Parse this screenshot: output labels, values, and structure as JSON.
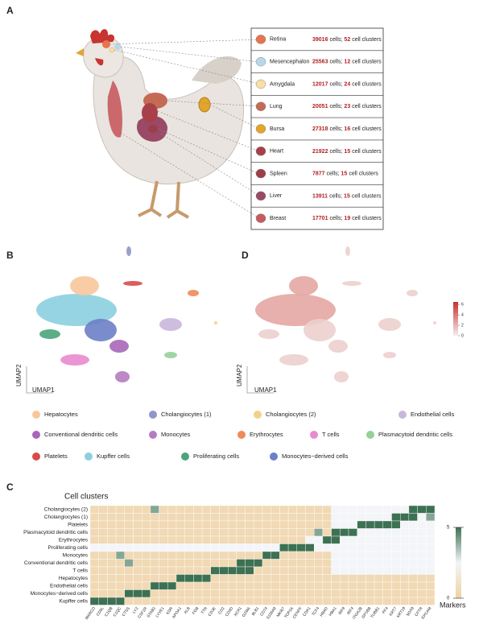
{
  "panel_labels": [
    "A",
    "B",
    "D",
    "C"
  ],
  "tissues": {
    "cells_label": "cells;",
    "clusters_label": "cell clusters",
    "items": [
      {
        "name": "Retina",
        "cells": 39016,
        "clusters": 52,
        "color": "#e8734f"
      },
      {
        "name": "Mesencephalon",
        "cells": 25563,
        "clusters": 12,
        "color": "#b8d8e8"
      },
      {
        "name": "Amygdala",
        "cells": 12017,
        "clusters": 24,
        "color": "#f8dfa8"
      },
      {
        "name": "Lung",
        "cells": 20051,
        "clusters": 23,
        "color": "#c56a55"
      },
      {
        "name": "Bursa",
        "cells": 27318,
        "clusters": 16,
        "color": "#e3a52a"
      },
      {
        "name": "Heart",
        "cells": 21922,
        "clusters": 15,
        "color": "#a8404a"
      },
      {
        "name": "Spleen",
        "cells": 7877,
        "clusters": 15,
        "color": "#9e3d48"
      },
      {
        "name": "Liver",
        "cells": 13911,
        "clusters": 15,
        "color": "#9a4a66"
      },
      {
        "name": "Breast",
        "cells": 17701,
        "clusters": 19,
        "color": "#c85a5f"
      }
    ]
  },
  "umap": {
    "x_label": "UMAP1",
    "y_label": "UMAP2",
    "colorbar": {
      "zlim": [
        0,
        6.5
      ],
      "ticks": [
        0,
        2,
        4,
        6
      ]
    },
    "clusters": [
      {
        "name": "Hepatocytes",
        "color": "#f7c89b"
      },
      {
        "name": "Cholangiocytes (1)",
        "color": "#8f96c9"
      },
      {
        "name": "Cholangiocytes (2)",
        "color": "#f2d28a"
      },
      {
        "name": "Endothelial cells",
        "color": "#c9b6dc"
      },
      {
        "name": "Conventional dendritic cells",
        "color": "#a768b8"
      },
      {
        "name": "Monocytes",
        "color": "#b57bc0"
      },
      {
        "name": "Erythrocytes",
        "color": "#f08a5a"
      },
      {
        "name": "T cells",
        "color": "#e98bcf"
      },
      {
        "name": "Plasmacytoid dendritic cells",
        "color": "#95d099"
      },
      {
        "name": "Platelets",
        "color": "#d94b48"
      },
      {
        "name": "Kupffer cells",
        "color": "#8ccfe0"
      },
      {
        "name": "Proliferating cells",
        "color": "#4aa57c"
      },
      {
        "name": "Monocytes−derived cells",
        "color": "#6c7fc7"
      }
    ]
  },
  "heatmap": {
    "type": "heatmap",
    "title": "Cell clusters",
    "x_label": "Markers",
    "zlim": [
      0,
      5
    ],
    "ticks": [
      0,
      5
    ],
    "rows": [
      "Cholangiocytes (2)",
      "Cholangiocytes (1)",
      "Platelets",
      "Plasmacytoid dendritic cells",
      "Erythrocytes",
      "Proliferating cells",
      "Monocytes",
      "Conventional dendritic cells",
      "T cells",
      "Hepatocytes",
      "Endothelial cells",
      "Monocytes−derived cells",
      "Kupffer cells"
    ],
    "columns": [
      "MARCO",
      "CD5L",
      "C1QB",
      "C1QC",
      "CTSS",
      "LYZ",
      "CSF1R",
      "STAB2",
      "LYVE1",
      "KDR",
      "APOA1",
      "ALB",
      "FGB",
      "TTR",
      "CD3E",
      "CD2",
      "CD3D",
      "XCR1",
      "GZMA",
      "BLB1",
      "CD74",
      "S100A8",
      "MKI67",
      "TOP2A",
      "CENPF",
      "CDK1",
      "TCF4",
      "HBAD",
      "HBA1",
      "IRF8",
      "IRF4",
      "ITGA2B",
      "GP1BB",
      "TUBB1",
      "PF4",
      "KRT7",
      "KRT19",
      "SOX9",
      "CFTR",
      "EPCAM"
    ],
    "values": [
      [
        0.5,
        0.5,
        0.5,
        0.5,
        0.5,
        0.5,
        0.5,
        4,
        0.5,
        0.5,
        0.5,
        0.5,
        0.5,
        0.5,
        0.5,
        0.5,
        0.5,
        0.5,
        0.5,
        0.5,
        0.5,
        0.5,
        0.5,
        0.5,
        0.5,
        0.5,
        0.5,
        0.5,
        2.5,
        2.5,
        2.5,
        2.5,
        2.5,
        2.5,
        2.5,
        2.5,
        2.5,
        5,
        5,
        5
      ],
      [
        0.5,
        0.5,
        0.5,
        0.5,
        0.5,
        0.5,
        0.5,
        0.5,
        0.5,
        0.5,
        0.5,
        0.5,
        0.5,
        0.5,
        0.5,
        0.5,
        0.5,
        0.5,
        0.5,
        0.5,
        0.5,
        0.5,
        0.5,
        0.5,
        0.5,
        0.5,
        0.5,
        0.5,
        2.5,
        2.5,
        2.5,
        2.5,
        2.5,
        2.5,
        2.5,
        5,
        5,
        5,
        2.5,
        4
      ],
      [
        0.5,
        0.5,
        0.5,
        0.5,
        0.5,
        0.5,
        0.5,
        0.5,
        0.5,
        0.5,
        0.5,
        0.5,
        0.5,
        0.5,
        0.5,
        0.5,
        0.5,
        0.5,
        0.5,
        0.5,
        0.5,
        0.5,
        0.5,
        0.5,
        0.5,
        0.5,
        0.5,
        0.5,
        2.5,
        2.5,
        2.5,
        5,
        5,
        5,
        5,
        5,
        2.5,
        2.5,
        2.5,
        2.5
      ],
      [
        0.5,
        0.5,
        0.5,
        0.5,
        0.5,
        0.5,
        0.5,
        0.5,
        0.5,
        0.5,
        0.5,
        0.5,
        0.5,
        0.5,
        0.5,
        0.5,
        0.5,
        0.5,
        0.5,
        0.5,
        0.5,
        0.5,
        0.5,
        0.5,
        0.5,
        0.5,
        4,
        0.5,
        5,
        5,
        5,
        2.5,
        2.5,
        2.5,
        2.5,
        2.5,
        2.5,
        2.5,
        2.5,
        2.5
      ],
      [
        0.5,
        0.5,
        0.5,
        0.5,
        0.5,
        0.5,
        0.5,
        0.5,
        0.5,
        0.5,
        0.5,
        0.5,
        0.5,
        0.5,
        0.5,
        0.5,
        0.5,
        0.5,
        0.5,
        0.5,
        0.5,
        0.5,
        0.5,
        0.5,
        0.5,
        2.5,
        2.5,
        5,
        5,
        2.5,
        2.5,
        2.5,
        2.5,
        2.5,
        2.5,
        2.5,
        2.5,
        2.5,
        2.5,
        2.5
      ],
      [
        2.5,
        2.5,
        2.5,
        2.5,
        2.5,
        2.5,
        2.5,
        2.5,
        2.5,
        2.5,
        2.5,
        2.5,
        2.5,
        2.5,
        2.5,
        2.5,
        2.5,
        2.5,
        2.5,
        2.5,
        2.5,
        2.5,
        5,
        5,
        5,
        5,
        2.5,
        2.5,
        2.5,
        2.5,
        2.5,
        2.5,
        2.5,
        2.5,
        2.5,
        2.5,
        2.5,
        2.5,
        2.5,
        2.5
      ],
      [
        0.5,
        0.5,
        0.5,
        4,
        0.5,
        0.5,
        0.5,
        0.5,
        0.5,
        0.5,
        0.5,
        0.5,
        0.5,
        0.5,
        0.5,
        0.5,
        0.5,
        0.5,
        0.5,
        0.5,
        5,
        5,
        0.5,
        0.5,
        0.5,
        0.5,
        0.5,
        0.5,
        2.5,
        2.5,
        2.5,
        2.5,
        2.5,
        2.5,
        2.5,
        2.5,
        2.5,
        2.5,
        2.5,
        2.5
      ],
      [
        0.5,
        0.5,
        0.5,
        0.5,
        4,
        0.5,
        0.5,
        0.5,
        0.5,
        0.5,
        0.5,
        0.5,
        0.5,
        0.5,
        0.5,
        0.5,
        0.5,
        5,
        5,
        5,
        0.5,
        0.5,
        0.5,
        0.5,
        0.5,
        0.5,
        0.5,
        0.5,
        2.5,
        2.5,
        2.5,
        2.5,
        2.5,
        2.5,
        2.5,
        2.5,
        2.5,
        2.5,
        2.5,
        2.5
      ],
      [
        0.5,
        0.5,
        0.5,
        0.5,
        0.5,
        0.5,
        0.5,
        0.5,
        0.5,
        0.5,
        0.5,
        0.5,
        0.5,
        0.5,
        5,
        5,
        5,
        5,
        5,
        0.5,
        0.5,
        0.5,
        0.5,
        0.5,
        0.5,
        0.5,
        0.5,
        0.5,
        2.5,
        2.5,
        2.5,
        2.5,
        2.5,
        2.5,
        2.5,
        2.5,
        2.5,
        2.5,
        2.5,
        2.5
      ],
      [
        0.5,
        0.5,
        0.5,
        0.5,
        0.5,
        0.5,
        0.5,
        0.5,
        0.5,
        0.5,
        5,
        5,
        5,
        5,
        0.5,
        0.5,
        0.5,
        0.5,
        0.5,
        0.5,
        0.5,
        0.5,
        0.5,
        0.5,
        0.5,
        0.5,
        0.5,
        0.5,
        0.5,
        0.5,
        0.5,
        0.5,
        0.5,
        0.5,
        0.5,
        0.5,
        0.5,
        0.5,
        0.5,
        0.5
      ],
      [
        0.5,
        0.5,
        0.5,
        0.5,
        0.5,
        0.5,
        0.5,
        5,
        5,
        5,
        0.5,
        0.5,
        0.5,
        0.5,
        0.5,
        0.5,
        0.5,
        0.5,
        0.5,
        0.5,
        0.5,
        0.5,
        0.5,
        0.5,
        0.5,
        0.5,
        0.5,
        0.5,
        0.5,
        0.5,
        0.5,
        0.5,
        0.5,
        0.5,
        0.5,
        0.5,
        0.5,
        0.5,
        0.5,
        0.5
      ],
      [
        0.5,
        0.5,
        0.5,
        0.5,
        5,
        5,
        5,
        0.5,
        0.5,
        0.5,
        0.5,
        0.5,
        0.5,
        0.5,
        0.5,
        0.5,
        0.5,
        0.5,
        0.5,
        0.5,
        0.5,
        0.5,
        0.5,
        0.5,
        0.5,
        0.5,
        0.5,
        0.5,
        0.5,
        0.5,
        0.5,
        0.5,
        0.5,
        0.5,
        0.5,
        0.5,
        0.5,
        0.5,
        0.5,
        0.5
      ],
      [
        5,
        5,
        5,
        5,
        0.5,
        0.5,
        0.5,
        0.5,
        0.5,
        0.5,
        0.5,
        0.5,
        0.5,
        0.5,
        0.5,
        0.5,
        0.5,
        0.5,
        0.5,
        0.5,
        0.5,
        0.5,
        0.5,
        0.5,
        0.5,
        0.5,
        0.5,
        0.5,
        0.5,
        0.5,
        0.5,
        0.5,
        0.5,
        0.5,
        0.5,
        0.5,
        0.5,
        0.5,
        0.5,
        0.5
      ]
    ]
  }
}
